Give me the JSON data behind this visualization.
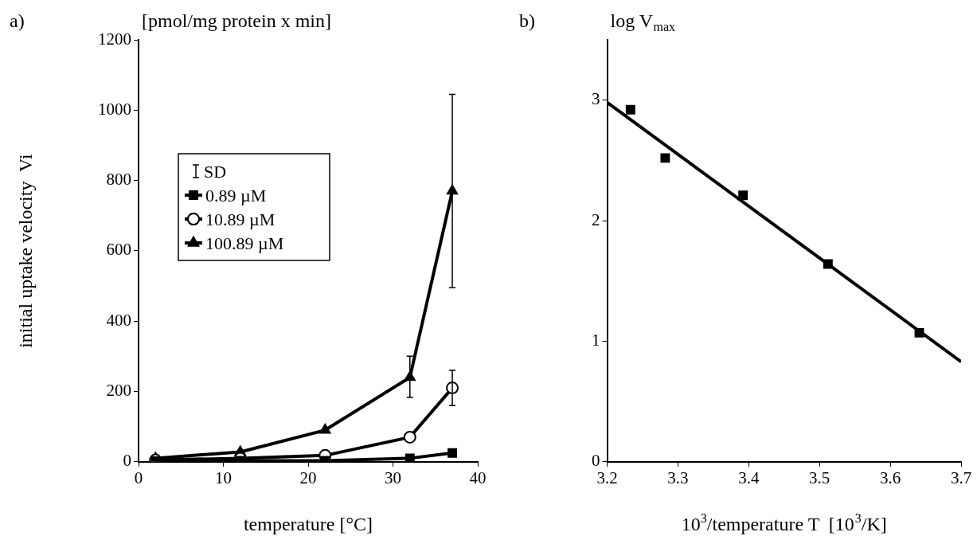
{
  "chart_data": [
    {
      "type": "line",
      "title": "a)",
      "xlabel": "temperature [°C]",
      "ylabel": "initial uptake velocity  Vi",
      "annotations": [
        "[pmol/mg protein x min]"
      ],
      "legend_title": "SD",
      "legend": "left",
      "xlim": [
        0,
        40
      ],
      "xticks": [
        0,
        10,
        20,
        30,
        40
      ],
      "ylim": [
        0,
        1200
      ],
      "yticks": [
        0,
        200,
        400,
        600,
        800,
        1000,
        1200
      ],
      "grid": false,
      "series": [
        {
          "name": "0.89 µM",
          "color": "#000000",
          "marker": "square",
          "x": [
            2,
            12,
            22,
            32,
            37
          ],
          "values": [
            2,
            3,
            3,
            10,
            25
          ]
        },
        {
          "name": "10.89 µM",
          "color": "#000000",
          "marker": "circle",
          "x": [
            2,
            12,
            22,
            32,
            37
          ],
          "values": [
            5,
            10,
            18,
            70,
            210
          ],
          "errors": [
            null,
            null,
            null,
            null,
            [
              160,
              260
            ]
          ]
        },
        {
          "name": "100.89 µM",
          "color": "#000000",
          "marker": "triangle",
          "x": [
            2,
            12,
            22,
            32,
            37
          ],
          "values": [
            10,
            28,
            90,
            240,
            770
          ],
          "errors": [
            null,
            null,
            null,
            [
              183,
              300
            ],
            [
              495,
              1045
            ]
          ]
        }
      ]
    },
    {
      "type": "scatter",
      "title": "b)",
      "xlabel": "10$^{3}$/temperature T  [10$^{3}$/K]",
      "annotations": [
        "log V$_{max}$"
      ],
      "xlim": [
        3.2,
        3.7
      ],
      "xticks": [
        3.2,
        3.3,
        3.4,
        3.5,
        3.6,
        3.7
      ],
      "ylim": [
        0,
        3.5
      ],
      "yticks": [
        0,
        1,
        2,
        3
      ],
      "grid": false,
      "legend": false,
      "series": [
        {
          "color": "#000000",
          "marker": "square",
          "x": [
            3.233,
            3.282,
            3.392,
            3.512,
            3.641
          ],
          "values": [
            2.92,
            2.52,
            2.21,
            1.64,
            1.07
          ]
        },
        {
          "type": "line",
          "color": "#000000",
          "marker": "none",
          "x": [
            3.2,
            3.7
          ],
          "values": [
            2.98,
            0.83
          ]
        }
      ]
    }
  ]
}
